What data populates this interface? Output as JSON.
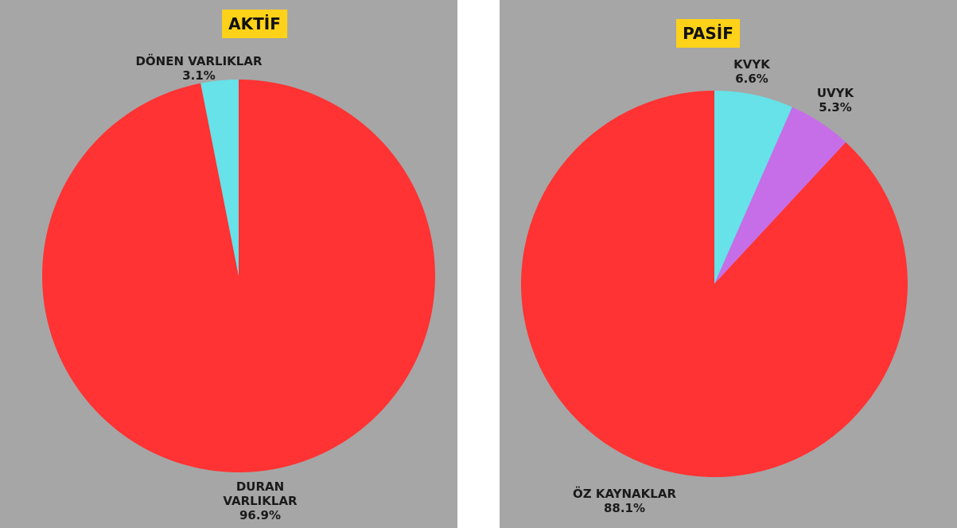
{
  "chart_data": [
    {
      "type": "pie",
      "title": "AKTİF",
      "categories": [
        "DURAN VARLIKLAR",
        "DÖNEN VARLIKLAR"
      ],
      "values": [
        96.9,
        3.1
      ],
      "value_labels": [
        "96.9%",
        "3.1%"
      ],
      "colors": [
        "#ff3333",
        "#66e2e8"
      ]
    },
    {
      "type": "pie",
      "title": "PASİF",
      "categories": [
        "KVYK",
        "UVYK",
        "ÖZ KAYNAKLAR"
      ],
      "values": [
        6.6,
        5.3,
        88.1
      ],
      "value_labels": [
        "6.6%",
        "5.3%",
        "88.1%"
      ],
      "colors": [
        "#66e2e8",
        "#c66ee8",
        "#ff3333"
      ]
    }
  ]
}
